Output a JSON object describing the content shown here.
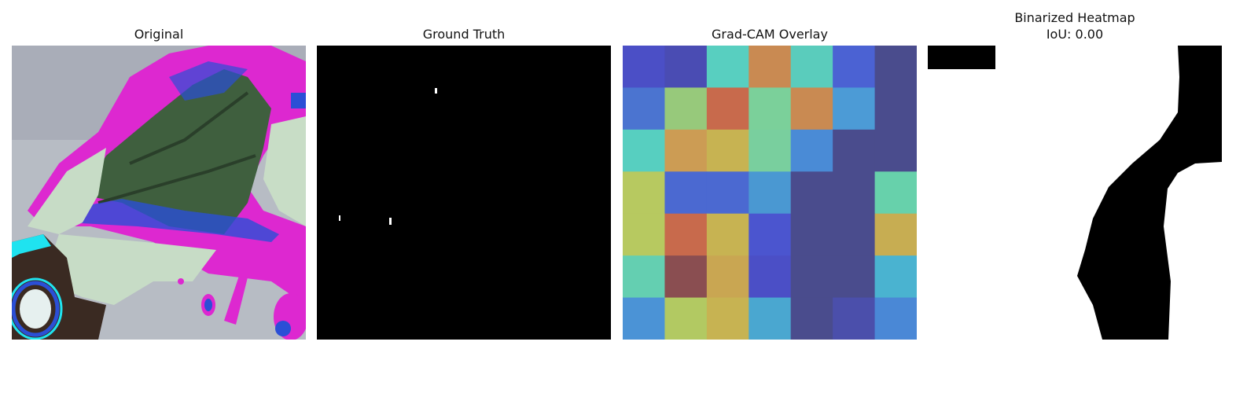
{
  "panels": {
    "original": {
      "title": "Original"
    },
    "ground_truth": {
      "title": "Ground Truth"
    },
    "gradcam": {
      "title": "Grad-CAM Overlay",
      "grid": [
        [
          "#4b4fc6",
          "#4a4cb3",
          "#58cfc0",
          "#c98a52",
          "#5accbc",
          "#4b62d3",
          "#4a4c8d"
        ],
        [
          "#4b74d0",
          "#97c97b",
          "#c86a4c",
          "#7bd09a",
          "#c98a52",
          "#4c9bd6",
          "#4a4c8d"
        ],
        [
          "#57cfc0",
          "#cc9c54",
          "#c7b352",
          "#79cf9e",
          "#4a8bd6",
          "#4a4c8d",
          "#4a4c8d"
        ],
        [
          "#b7c960",
          "#4b69d1",
          "#4b69d1",
          "#4a98d2",
          "#4a4c8d",
          "#4a4c8d",
          "#67d1ab"
        ],
        [
          "#b7c960",
          "#c86a4c",
          "#c7b352",
          "#4b55cf",
          "#4a4c8d",
          "#4a4c8d",
          "#c7ad52"
        ],
        [
          "#64cfb1",
          "#8a4e51",
          "#c9a652",
          "#4b4fc6",
          "#4a4c8d",
          "#4a4c8d",
          "#4ab3d0"
        ],
        [
          "#4b93d6",
          "#b2c962",
          "#c7b352",
          "#4aa7d0",
          "#4a4c8d",
          "#4b4fab",
          "#4a88d6"
        ]
      ]
    },
    "binarized": {
      "title": "Binarized Heatmap",
      "subtitle": "IoU: 0.00"
    }
  }
}
